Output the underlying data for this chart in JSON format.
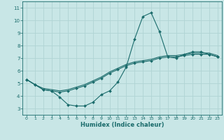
{
  "xlabel": "Humidex (Indice chaleur)",
  "xlim": [
    -0.5,
    23.5
  ],
  "ylim": [
    2.5,
    11.5
  ],
  "xticks": [
    0,
    1,
    2,
    3,
    4,
    5,
    6,
    7,
    8,
    9,
    10,
    11,
    12,
    13,
    14,
    15,
    16,
    17,
    18,
    19,
    20,
    21,
    22,
    23
  ],
  "yticks": [
    3,
    4,
    5,
    6,
    7,
    8,
    9,
    10,
    11
  ],
  "bg_color": "#c8e6e6",
  "line_color": "#1a6b6b",
  "grid_color": "#b0d4d4",
  "line1_x": [
    0,
    1,
    2,
    3,
    4,
    5,
    6,
    7,
    8,
    9,
    10,
    11,
    12,
    13,
    14,
    15,
    16,
    17,
    18,
    19,
    20,
    21,
    22,
    23
  ],
  "line1_y": [
    5.3,
    4.9,
    4.5,
    4.4,
    3.9,
    3.3,
    3.2,
    3.2,
    3.5,
    4.1,
    4.4,
    5.1,
    6.3,
    8.5,
    10.3,
    10.6,
    9.1,
    7.1,
    7.0,
    7.3,
    7.5,
    7.5,
    7.3,
    7.1
  ],
  "line2_x": [
    0,
    1,
    2,
    3,
    4,
    5,
    6,
    7,
    8,
    9,
    10,
    11,
    12,
    13,
    14,
    15,
    16,
    17,
    18,
    19,
    20,
    21,
    22,
    23
  ],
  "line2_y": [
    5.3,
    4.9,
    4.5,
    4.4,
    4.3,
    4.4,
    4.6,
    4.8,
    5.1,
    5.4,
    5.8,
    6.1,
    6.4,
    6.6,
    6.7,
    6.8,
    7.0,
    7.1,
    7.1,
    7.2,
    7.3,
    7.3,
    7.3,
    7.1
  ],
  "line3_x": [
    0,
    1,
    2,
    3,
    4,
    5,
    6,
    7,
    8,
    9,
    10,
    11,
    12,
    13,
    14,
    15,
    16,
    17,
    18,
    19,
    20,
    21,
    22,
    23
  ],
  "line3_y": [
    5.3,
    4.9,
    4.6,
    4.5,
    4.4,
    4.5,
    4.7,
    4.9,
    5.2,
    5.5,
    5.9,
    6.2,
    6.5,
    6.7,
    6.8,
    6.9,
    7.1,
    7.2,
    7.2,
    7.3,
    7.4,
    7.4,
    7.4,
    7.2
  ]
}
